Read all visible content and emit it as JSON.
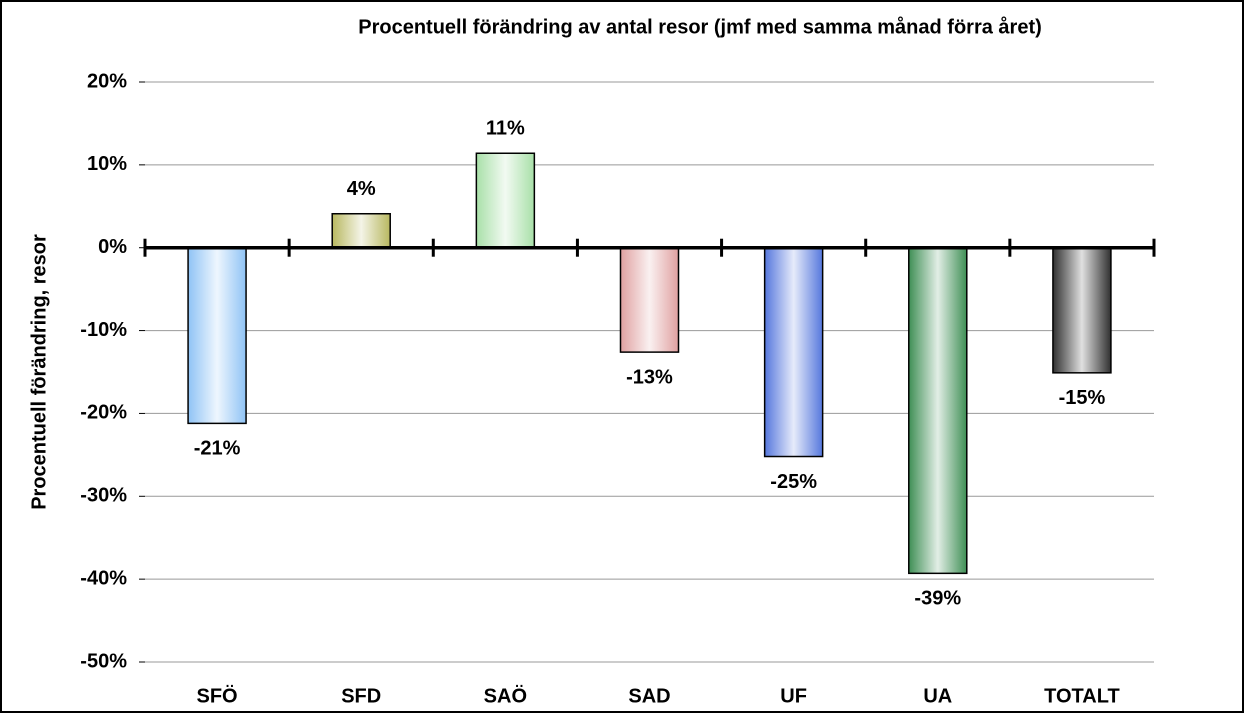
{
  "chart_data": {
    "type": "bar",
    "title": "Procentuell förändring av antal resor (jmf med samma månad förra året)",
    "y_label": "Procentuell förändring, resor",
    "categories": [
      "SFÖ",
      "SFD",
      "SAÖ",
      "SAD",
      "UF",
      "UA",
      "TOTALT"
    ],
    "values": [
      -21.2,
      4.1,
      11.4,
      -12.6,
      -25.2,
      -39.3,
      -15.1
    ],
    "value_labels": [
      "-21%",
      "4%",
      "11%",
      "-13%",
      "-25%",
      "-39%",
      "-15%"
    ],
    "colors": [
      "#8fc3f5",
      "#b8b860",
      "#a8e0a8",
      "#e0a0a0",
      "#5577dd",
      "#3f8f55",
      "#303030"
    ],
    "ylim": [
      -50,
      20
    ],
    "yticks": [
      {
        "value": -50,
        "label": "-50%"
      },
      {
        "value": -40,
        "label": "-40%"
      },
      {
        "value": -30,
        "label": "-30%"
      },
      {
        "value": -20,
        "label": "-20%"
      },
      {
        "value": -10,
        "label": "-10%"
      },
      {
        "value": 0,
        "label": "0%"
      },
      {
        "value": 10,
        "label": "10%"
      },
      {
        "value": 20,
        "label": "20%"
      }
    ],
    "grid": true
  }
}
